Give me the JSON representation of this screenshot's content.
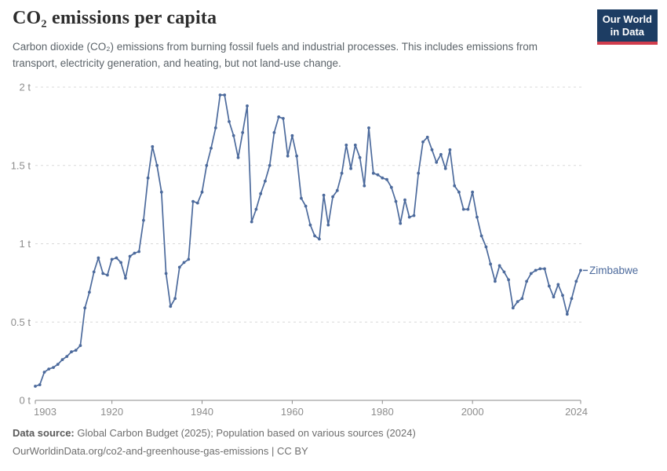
{
  "header": {
    "title": "CO₂ emissions per capita",
    "subtitle": "Carbon dioxide (CO₂) emissions from burning fossil fuels and industrial processes. This includes emissions from transport, electricity generation, and heating, but not land-use change."
  },
  "logo": {
    "line1": "Our World",
    "line2": "in Data",
    "bg_color": "#1d3d63",
    "bar_color": "#d13d4d"
  },
  "chart_data": {
    "type": "line",
    "title": "CO₂ emissions per capita",
    "series": [
      {
        "name": "Zimbabwe",
        "color": "#4c6a9c",
        "x": [
          1903,
          1904,
          1905,
          1906,
          1907,
          1908,
          1909,
          1910,
          1911,
          1912,
          1913,
          1914,
          1915,
          1916,
          1917,
          1918,
          1919,
          1920,
          1921,
          1922,
          1923,
          1924,
          1925,
          1926,
          1927,
          1928,
          1929,
          1930,
          1931,
          1932,
          1933,
          1934,
          1935,
          1936,
          1937,
          1938,
          1939,
          1940,
          1941,
          1942,
          1943,
          1944,
          1945,
          1946,
          1947,
          1948,
          1949,
          1950,
          1951,
          1952,
          1953,
          1954,
          1955,
          1956,
          1957,
          1958,
          1959,
          1960,
          1961,
          1962,
          1963,
          1964,
          1965,
          1966,
          1967,
          1968,
          1969,
          1970,
          1971,
          1972,
          1973,
          1974,
          1975,
          1976,
          1977,
          1978,
          1979,
          1980,
          1981,
          1982,
          1983,
          1984,
          1985,
          1986,
          1987,
          1988,
          1989,
          1990,
          1991,
          1992,
          1993,
          1994,
          1995,
          1996,
          1997,
          1998,
          1999,
          2000,
          2001,
          2002,
          2003,
          2004,
          2005,
          2006,
          2007,
          2008,
          2009,
          2010,
          2011,
          2012,
          2013,
          2014,
          2015,
          2016,
          2017,
          2018,
          2019,
          2020,
          2021,
          2022,
          2023,
          2024
        ],
        "values": [
          0.09,
          0.1,
          0.18,
          0.2,
          0.21,
          0.23,
          0.26,
          0.28,
          0.31,
          0.32,
          0.35,
          0.59,
          0.69,
          0.82,
          0.91,
          0.81,
          0.8,
          0.9,
          0.91,
          0.88,
          0.78,
          0.92,
          0.94,
          0.95,
          1.15,
          1.42,
          1.62,
          1.5,
          1.33,
          0.81,
          0.6,
          0.65,
          0.85,
          0.88,
          0.9,
          1.27,
          1.26,
          1.33,
          1.5,
          1.61,
          1.74,
          1.95,
          1.95,
          1.78,
          1.69,
          1.55,
          1.71,
          1.88,
          1.14,
          1.22,
          1.32,
          1.4,
          1.5,
          1.71,
          1.81,
          1.8,
          1.56,
          1.69,
          1.56,
          1.29,
          1.24,
          1.12,
          1.05,
          1.03,
          1.31,
          1.12,
          1.3,
          1.34,
          1.45,
          1.63,
          1.48,
          1.63,
          1.55,
          1.37,
          1.74,
          1.45,
          1.44,
          1.42,
          1.41,
          1.36,
          1.27,
          1.13,
          1.28,
          1.17,
          1.18,
          1.45,
          1.65,
          1.68,
          1.6,
          1.52,
          1.57,
          1.48,
          1.6,
          1.37,
          1.33,
          1.22,
          1.22,
          1.33,
          1.17,
          1.05,
          0.98,
          0.87,
          0.76,
          0.86,
          0.82,
          0.77,
          0.59,
          0.63,
          0.65,
          0.76,
          0.81,
          0.83,
          0.84,
          0.84,
          0.73,
          0.66,
          0.74,
          0.67,
          0.55,
          0.65,
          0.76,
          0.83
        ]
      }
    ],
    "xlabel": "",
    "ylabel": "",
    "xlim": [
      1903,
      2024
    ],
    "ylim": [
      0,
      2
    ],
    "x_ticks": [
      1903,
      1920,
      1940,
      1960,
      1980,
      2000,
      2024
    ],
    "y_ticks": [
      {
        "value": 0,
        "label": "0 t"
      },
      {
        "value": 0.5,
        "label": "0.5 t"
      },
      {
        "value": 1,
        "label": "1 t"
      },
      {
        "value": 1.5,
        "label": "1.5 t"
      },
      {
        "value": 2,
        "label": "2 t"
      }
    ],
    "grid": "horizontal-dashed",
    "legend_position": "end-of-line-label",
    "axis_text_color": "#8d8d8d",
    "grid_color": "#d9d9d9"
  },
  "footer": {
    "source_label": "Data source:",
    "source_text": " Global Carbon Budget (2025); Population based on various sources (2024)",
    "url_line": "OurWorldinData.org/co2-and-greenhouse-gas-emissions | CC BY"
  }
}
